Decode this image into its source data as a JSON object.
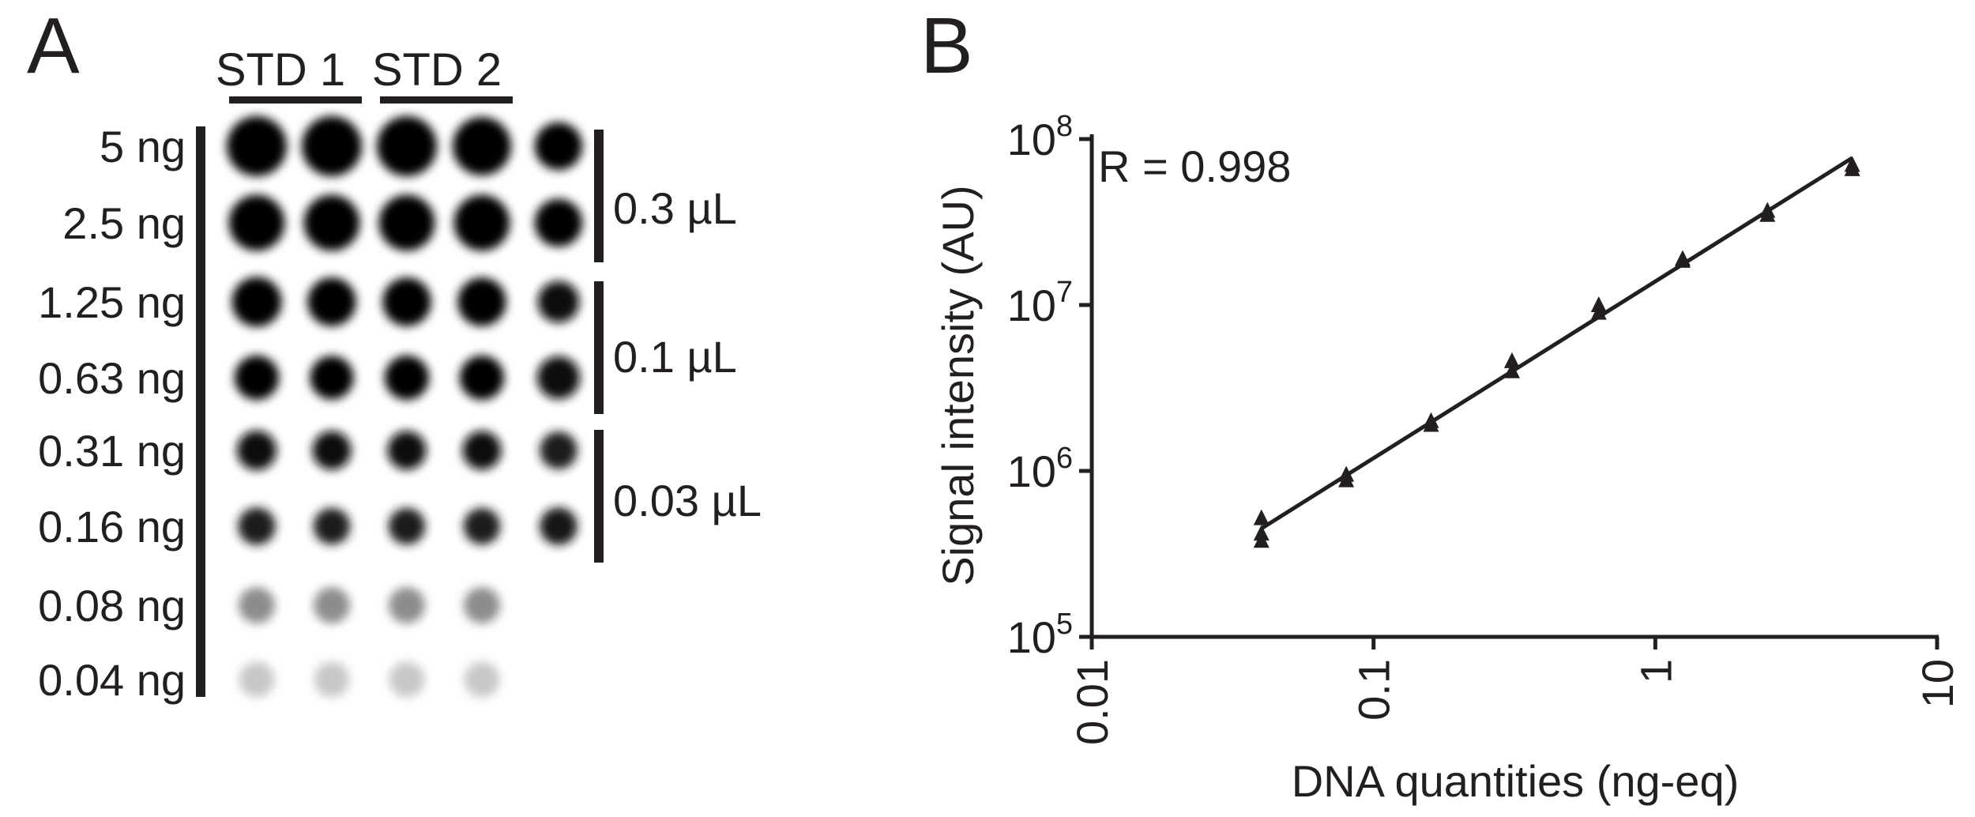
{
  "figure": {
    "panel_a_letter": "A",
    "panel_b_letter": "B",
    "colors": {
      "ink": "#231f20",
      "background": "#ffffff"
    }
  },
  "dot_blot": {
    "groups": [
      "STD 1",
      "STD 2"
    ],
    "rows": [
      "5 ng",
      "2.5 ng",
      "1.25 ng",
      "0.63 ng",
      "0.31 ng",
      "0.16 ng",
      "0.08 ng",
      "0.04 ng"
    ],
    "volume_brackets": [
      "0.3 µL",
      "0.1 µL",
      "0.03 µL"
    ],
    "intensity": [
      [
        1.0,
        1.0,
        1.0,
        1.0,
        0.98
      ],
      [
        1.0,
        1.0,
        1.0,
        1.0,
        0.98
      ],
      [
        1.0,
        1.0,
        1.0,
        1.0,
        0.97
      ],
      [
        0.99,
        0.99,
        0.99,
        0.99,
        0.97
      ],
      [
        0.96,
        0.96,
        0.96,
        0.96,
        0.88
      ],
      [
        0.88,
        0.88,
        0.88,
        0.88,
        0.92
      ],
      [
        0.45,
        0.45,
        0.45,
        0.45,
        null
      ],
      [
        0.22,
        0.22,
        0.22,
        0.22,
        null
      ]
    ],
    "spot_size": [
      [
        1.0,
        1.0,
        1.0,
        0.96,
        0.7
      ],
      [
        0.9,
        0.9,
        0.9,
        0.9,
        0.7
      ],
      [
        0.75,
        0.72,
        0.72,
        0.72,
        0.55
      ],
      [
        0.62,
        0.6,
        0.62,
        0.62,
        0.58
      ],
      [
        0.5,
        0.48,
        0.48,
        0.48,
        0.45
      ],
      [
        0.45,
        0.43,
        0.43,
        0.43,
        0.45
      ],
      [
        0.42,
        0.42,
        0.42,
        0.42,
        null
      ],
      [
        0.4,
        0.4,
        0.4,
        0.4,
        null
      ]
    ]
  },
  "chart_data": {
    "type": "scatter",
    "xlabel": "DNA quantities (ng-eq)",
    "ylabel": "Signal intensity (AU)",
    "annotation": "R = 0.998",
    "xscale": "log",
    "yscale": "log",
    "xlim": [
      0.01,
      10
    ],
    "ylim": [
      100000,
      100000000
    ],
    "xticks": [
      {
        "value": 0.01,
        "label": "0.01"
      },
      {
        "value": 0.1,
        "label": "0.1"
      },
      {
        "value": 1,
        "label": "1"
      },
      {
        "value": 10,
        "label": "10"
      }
    ],
    "yticks": [
      {
        "value": 100000,
        "base": "10",
        "exp": "5"
      },
      {
        "value": 1000000,
        "base": "10",
        "exp": "6"
      },
      {
        "value": 10000000,
        "base": "10",
        "exp": "7"
      },
      {
        "value": 100000000,
        "base": "10",
        "exp": "8"
      }
    ],
    "grid": false,
    "marker": "triangle",
    "points": [
      [
        0.04,
        520000
      ],
      [
        0.04,
        420000
      ],
      [
        0.04,
        380000
      ],
      [
        0.08,
        950000
      ],
      [
        0.08,
        880000
      ],
      [
        0.16,
        2000000
      ],
      [
        0.16,
        1900000
      ],
      [
        0.31,
        4600000
      ],
      [
        0.31,
        4000000
      ],
      [
        0.63,
        10000000
      ],
      [
        0.63,
        9000000
      ],
      [
        1.25,
        19000000
      ],
      [
        1.25,
        18500000
      ],
      [
        2.5,
        37000000
      ],
      [
        2.5,
        35000000
      ],
      [
        5,
        70000000
      ],
      [
        5,
        66000000
      ]
    ],
    "fit_line": [
      [
        0.04,
        450000
      ],
      [
        5,
        77000000
      ]
    ]
  }
}
